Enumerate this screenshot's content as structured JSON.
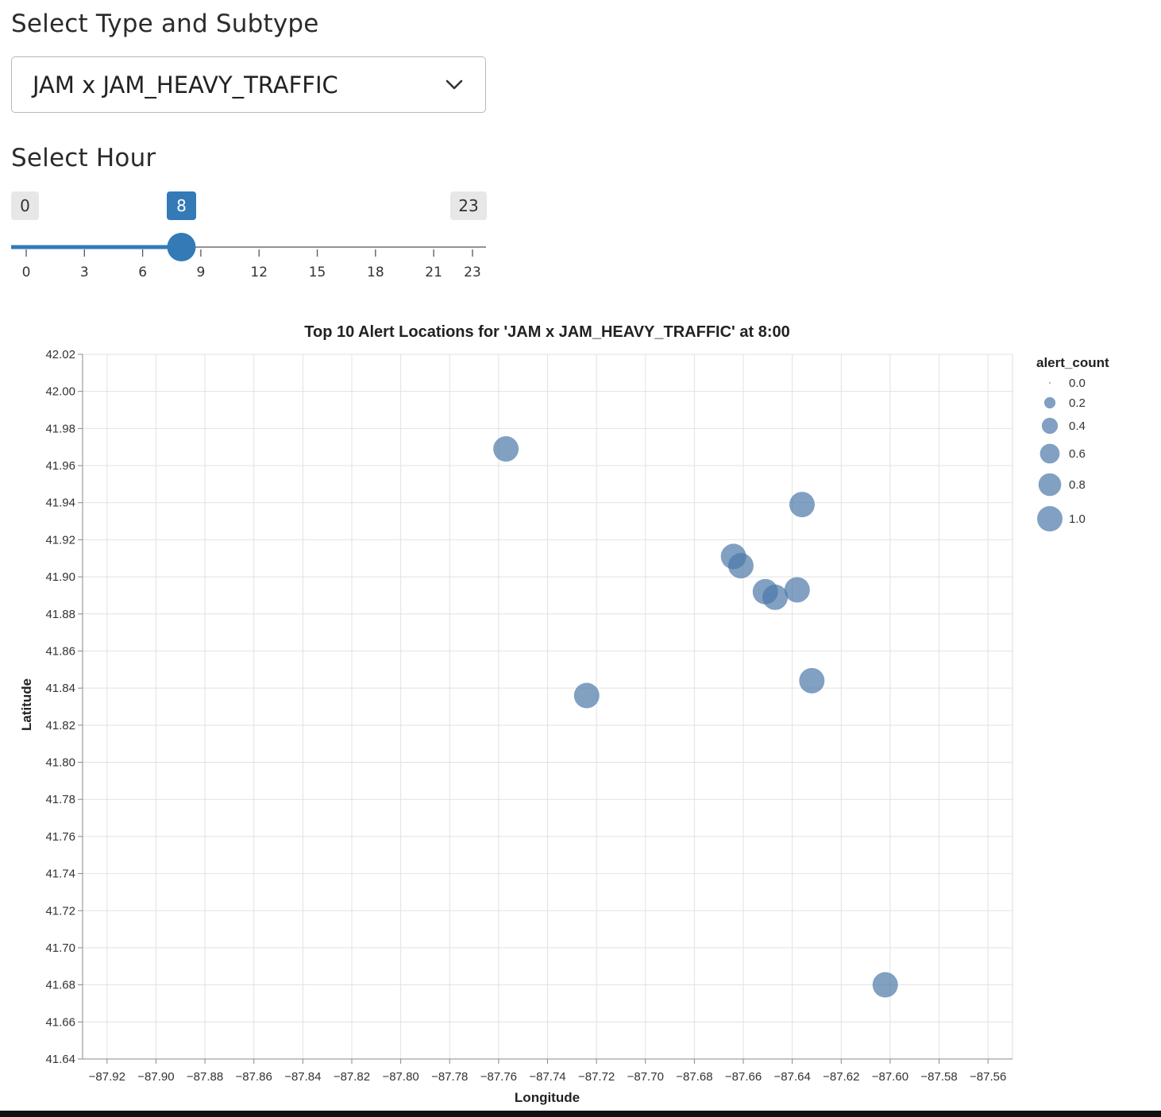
{
  "type_select": {
    "label": "Select Type and Subtype",
    "value": "JAM x JAM_HEAVY_TRAFFIC"
  },
  "hour_slider": {
    "label": "Select Hour",
    "min": 0,
    "max": 23,
    "value": 8,
    "min_label": "0",
    "max_label": "23",
    "value_label": "8",
    "ticks": [
      "0",
      "3",
      "6",
      "9",
      "12",
      "15",
      "18",
      "21",
      "23"
    ],
    "accent_color": "#337ab7"
  },
  "chart_data": {
    "type": "scatter",
    "title": "Top 10 Alert Locations for 'JAM x JAM_HEAVY_TRAFFIC' at 8:00",
    "xlabel": "Longitude",
    "ylabel": "Latitude",
    "xlim": [
      -87.93,
      -87.55
    ],
    "ylim": [
      41.64,
      42.02
    ],
    "xticks": [
      "-87.92",
      "-87.90",
      "-87.88",
      "-87.86",
      "-87.84",
      "-87.82",
      "-87.80",
      "-87.78",
      "-87.76",
      "-87.74",
      "-87.72",
      "-87.70",
      "-87.68",
      "-87.66",
      "-87.64",
      "-87.62",
      "-87.60",
      "-87.58",
      "-87.56"
    ],
    "yticks": [
      "42.02",
      "42.00",
      "41.98",
      "41.96",
      "41.94",
      "41.92",
      "41.90",
      "41.88",
      "41.86",
      "41.84",
      "41.82",
      "41.80",
      "41.78",
      "41.76",
      "41.74",
      "41.72",
      "41.70",
      "41.68",
      "41.66",
      "41.64"
    ],
    "grid": true,
    "point_color": "#4c78a8",
    "points": [
      {
        "x": -87.757,
        "y": 41.969,
        "size": 1.0
      },
      {
        "x": -87.636,
        "y": 41.939,
        "size": 1.0
      },
      {
        "x": -87.664,
        "y": 41.911,
        "size": 1.0
      },
      {
        "x": -87.661,
        "y": 41.906,
        "size": 1.0
      },
      {
        "x": -87.651,
        "y": 41.892,
        "size": 1.0
      },
      {
        "x": -87.647,
        "y": 41.889,
        "size": 1.0
      },
      {
        "x": -87.638,
        "y": 41.893,
        "size": 1.0
      },
      {
        "x": -87.724,
        "y": 41.836,
        "size": 1.0
      },
      {
        "x": -87.632,
        "y": 41.844,
        "size": 1.0
      },
      {
        "x": -87.602,
        "y": 41.68,
        "size": 1.0
      }
    ],
    "legend": {
      "title": "alert_count",
      "position": "right",
      "entries": [
        {
          "label": "0.0",
          "value": 0.0
        },
        {
          "label": "0.2",
          "value": 0.2
        },
        {
          "label": "0.4",
          "value": 0.4
        },
        {
          "label": "0.6",
          "value": 0.6
        },
        {
          "label": "0.8",
          "value": 0.8
        },
        {
          "label": "1.0",
          "value": 1.0
        }
      ]
    }
  }
}
